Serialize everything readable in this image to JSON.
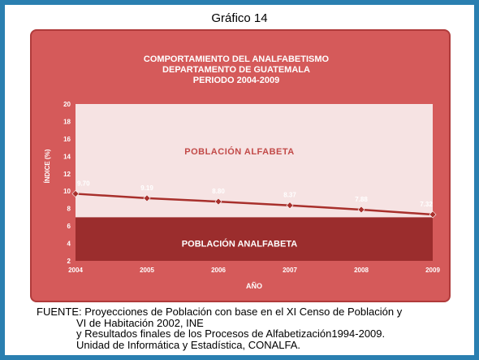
{
  "slide": {
    "heading": "Gráfico 14"
  },
  "chart_data": {
    "type": "line",
    "title_lines": [
      "COMPORTAMIENTO DEL ANALFABETISMO",
      "DEPARTAMENTO DE GUATEMALA",
      "PERIODO 2004-2009"
    ],
    "xlabel": "AÑO",
    "ylabel": "ÍNDICE (%)",
    "categories": [
      "2004",
      "2005",
      "2006",
      "2007",
      "2008",
      "2009"
    ],
    "values": [
      9.7,
      9.19,
      8.8,
      8.37,
      7.88,
      7.32
    ],
    "value_labels": [
      "9.70",
      "9.19",
      "8.80",
      "8.37",
      "7.88",
      "7.32"
    ],
    "yticks": [
      "2",
      "4",
      "6",
      "8",
      "10",
      "12",
      "14",
      "16",
      "18",
      "20"
    ],
    "ylim": [
      2,
      20
    ],
    "bands": {
      "upper_label": "POBLACIÓN ALFABETA",
      "lower_label": "POBLACIÓN ANALFABETA",
      "lower_band_top": 7
    },
    "colors": {
      "panel": "#d55a5a",
      "plot_area": "#f6e3e3",
      "lower_band": "#9b2d2d",
      "line": "#a8302c",
      "upper_label": "#c24a48"
    }
  },
  "footer": {
    "line1": "FUENTE: Proyecciones de Población con base en el XI Censo de Población y",
    "line2": "VI de Habitación 2002, INE",
    "line3": "y Resultados finales de los Procesos de Alfabetización1994-2009.",
    "line4": "Unidad de Informática y Estadística, CONALFA."
  }
}
